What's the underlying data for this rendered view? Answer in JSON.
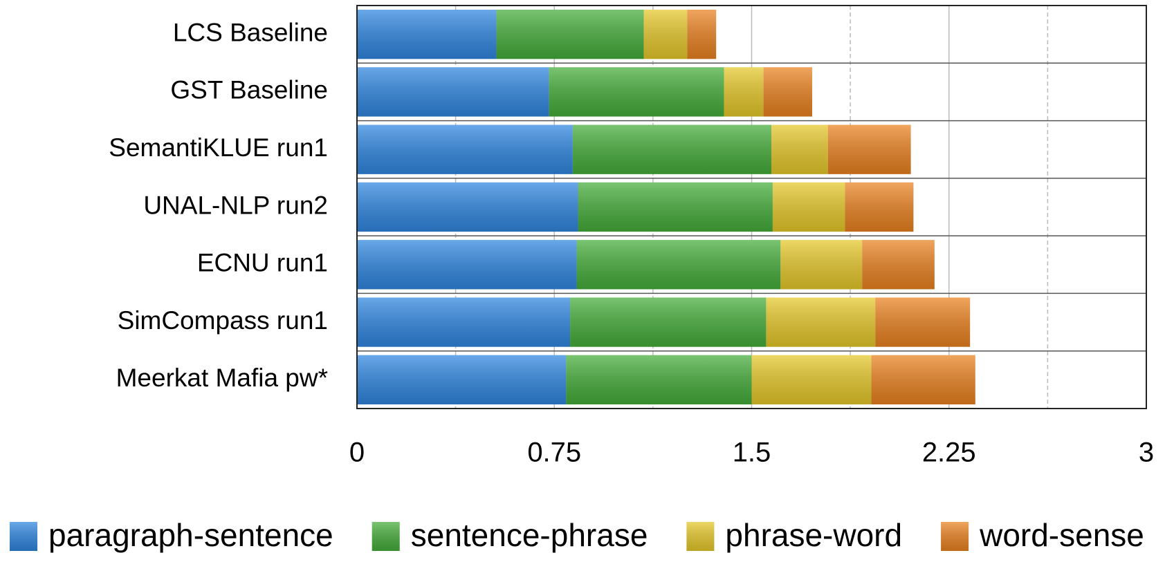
{
  "chart_data": {
    "type": "bar",
    "orientation": "horizontal",
    "stacked": true,
    "categories": [
      "LCS Baseline",
      "GST Baseline",
      "SemantiKLUE run1",
      "UNAL-NLP run2",
      "ECNU run1",
      "SimCompass run1",
      "Meerkat Mafia pw*"
    ],
    "series": [
      {
        "name": "paragraph-sentence",
        "color": "#2f86e0",
        "values": [
          0.53,
          0.73,
          0.82,
          0.84,
          0.835,
          0.81,
          0.795
        ]
      },
      {
        "name": "sentence-phrase",
        "color": "#45ad3a",
        "values": [
          0.56,
          0.665,
          0.755,
          0.74,
          0.775,
          0.745,
          0.705
        ]
      },
      {
        "name": "phrase-word",
        "color": "#e6c82a",
        "values": [
          0.165,
          0.15,
          0.215,
          0.275,
          0.31,
          0.415,
          0.455
        ]
      },
      {
        "name": "word-sense",
        "color": "#ea8220",
        "values": [
          0.11,
          0.185,
          0.315,
          0.26,
          0.275,
          0.36,
          0.395
        ]
      }
    ],
    "xlim": [
      0,
      3
    ],
    "xticks": [
      0,
      0.75,
      1.5,
      2.25,
      3
    ],
    "minor_xticks": [
      0.375,
      1.125,
      1.875,
      2.625
    ],
    "grid": true,
    "legend": "bottom"
  }
}
